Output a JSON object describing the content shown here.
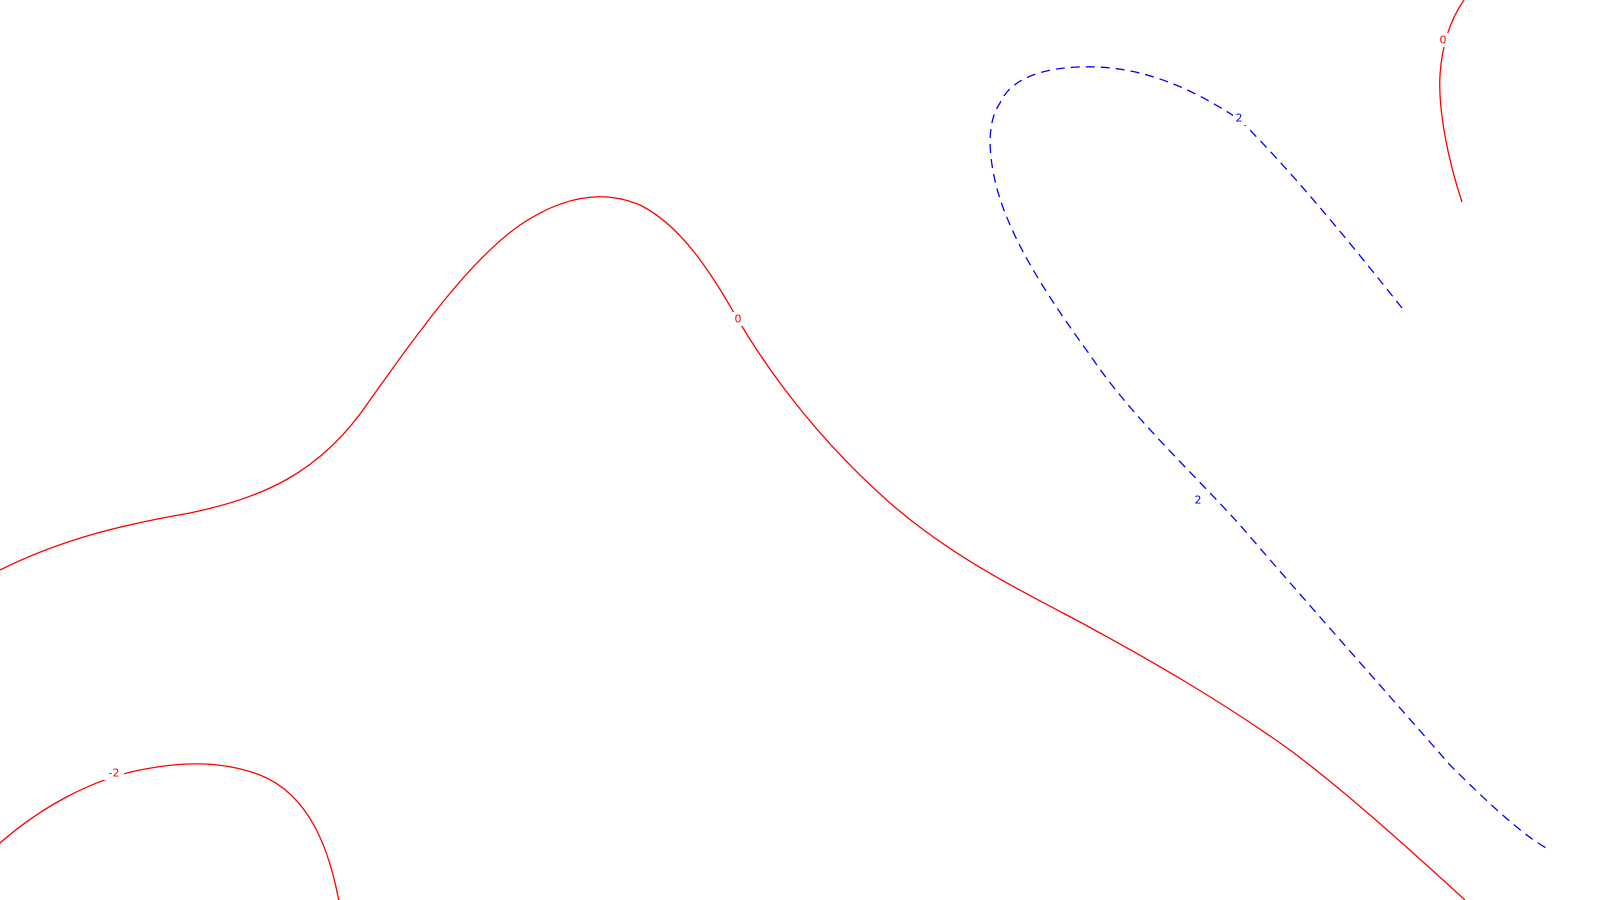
{
  "map": {
    "contours": [
      {
        "id": "contour-zero-main",
        "value": 0,
        "label": "0",
        "color": "#ff0000",
        "style": "solid"
      },
      {
        "id": "contour-zero-upper-right",
        "value": 0,
        "label": "0",
        "color": "#ff0000",
        "style": "solid"
      },
      {
        "id": "contour-minus-two",
        "value": -2,
        "label": "-2",
        "color": "#ff0000",
        "style": "solid"
      },
      {
        "id": "contour-plus-two",
        "value": 2,
        "label": "2",
        "color": "#0000ff",
        "style": "dashed"
      }
    ]
  }
}
